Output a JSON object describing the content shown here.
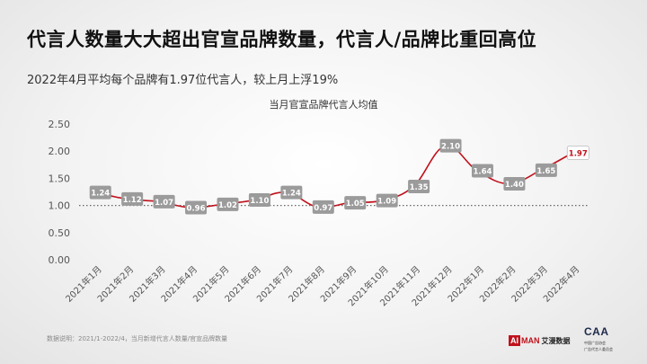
{
  "headline": "代言人数量大大超出官宣品牌数量，代言人/品牌比重回高位",
  "subhead": "2022年4月平均每个品牌有1.97位代言人，较上月上浮19%",
  "footnote": "数据说明：2021/1-2022/4，当月新增代言人数量/官宣品牌数量",
  "logos": {
    "aiman_ai": "AI",
    "aiman_man": "MAN",
    "aiman_cn": "艾漫数据",
    "caa_mark": "CAA",
    "caa_line1": "中国广告协会",
    "caa_line2": "广告代言人委员会"
  },
  "colors": {
    "line": "#c0121c",
    "label_box": "#9b9b9b",
    "highlight_box": "#ffffff",
    "highlight_text": "#c0121c",
    "axis_text": "#555555",
    "reference_line": "#666666"
  },
  "chart_data": {
    "type": "line",
    "title": "当月官宣品牌代言人均值",
    "xlabel": "",
    "ylabel": "",
    "ylim": [
      0,
      2.5
    ],
    "yticks": [
      "0.00",
      "0.50",
      "1.00",
      "1.50",
      "2.00",
      "2.50"
    ],
    "reference_line": 1.0,
    "grid": false,
    "legend": "none",
    "categories": [
      "2021年1月",
      "2021年2月",
      "2021年3月",
      "2021年4月",
      "2021年5月",
      "2021年6月",
      "2021年7月",
      "2021年8月",
      "2021年9月",
      "2021年10月",
      "2021年11月",
      "2021年12月",
      "2022年1月",
      "2022年2月",
      "2022年3月",
      "2022年4月"
    ],
    "series": [
      {
        "values": [
          1.24,
          1.12,
          1.07,
          0.96,
          1.02,
          1.1,
          1.24,
          0.97,
          1.05,
          1.09,
          1.35,
          2.1,
          1.64,
          1.4,
          1.65,
          1.97
        ],
        "labels": [
          "1.24",
          "1.12",
          "1.07",
          "0.96",
          "1.02",
          "1.10",
          "1.24",
          "0.97",
          "1.05",
          "1.09",
          "1.35",
          "2.10",
          "1.64",
          "1.40",
          "1.65",
          "1.97"
        ]
      }
    ],
    "highlight": "2022年4月"
  }
}
